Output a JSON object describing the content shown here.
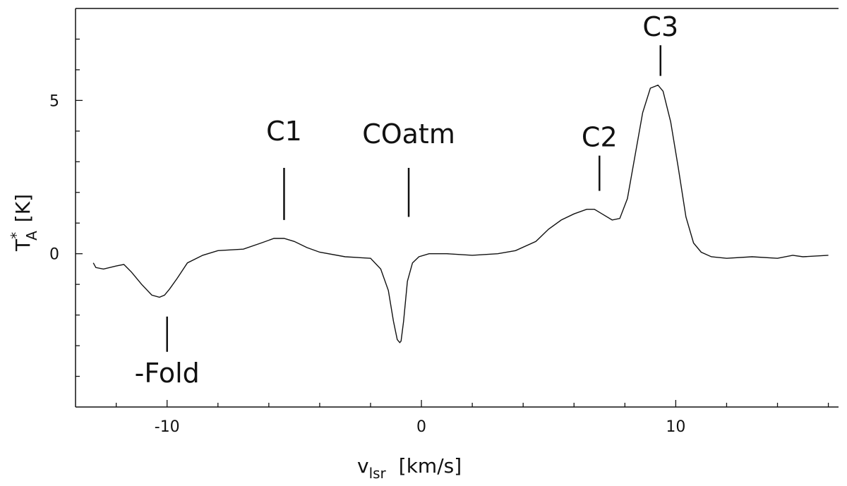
{
  "chart_data": {
    "type": "line",
    "xlabel_main": "v",
    "xlabel_sub": "lsr",
    "xlabel_unit": "[km/s]",
    "ylabel_main": "T",
    "ylabel_sup": "*",
    "ylabel_sub": "A",
    "ylabel_unit": "[K]",
    "xlim": [
      -13.6,
      16.4
    ],
    "ylim": [
      -5.0,
      8.0
    ],
    "x_ticks": [
      -10,
      0,
      10
    ],
    "y_ticks": [
      0,
      5
    ],
    "grid": false,
    "series": [
      {
        "x": [
          -12.9,
          -12.8,
          -12.5,
          -12.0,
          -11.7,
          -11.4,
          -11.0,
          -10.6,
          -10.3,
          -10.1,
          -9.9,
          -9.6,
          -9.2,
          -8.6,
          -8.0,
          -7.0,
          -6.3,
          -5.8,
          -5.4,
          -5.0,
          -4.5,
          -4.0,
          -3.0,
          -2.0,
          -1.6,
          -1.3,
          -1.1,
          -0.95,
          -0.85,
          -0.8,
          -0.7,
          -0.55,
          -0.35,
          -0.1,
          0.3,
          1.0,
          2.0,
          3.0,
          3.7,
          4.5,
          5.0,
          5.5,
          6.0,
          6.5,
          6.8,
          7.1,
          7.5,
          7.8,
          8.1,
          8.4,
          8.7,
          9.0,
          9.3,
          9.5,
          9.8,
          10.1,
          10.4,
          10.7,
          11.0,
          11.4,
          12.0,
          13.0,
          14.0,
          14.6,
          15.0,
          16.0
        ],
        "y": [
          -0.3,
          -0.45,
          -0.5,
          -0.4,
          -0.35,
          -0.6,
          -1.0,
          -1.35,
          -1.42,
          -1.35,
          -1.15,
          -0.8,
          -0.3,
          -0.05,
          0.1,
          0.15,
          0.35,
          0.5,
          0.5,
          0.4,
          0.2,
          0.05,
          -0.1,
          -0.15,
          -0.5,
          -1.2,
          -2.2,
          -2.8,
          -2.9,
          -2.85,
          -2.2,
          -0.9,
          -0.3,
          -0.1,
          0.0,
          0.0,
          -0.05,
          0.0,
          0.1,
          0.4,
          0.8,
          1.1,
          1.3,
          1.45,
          1.45,
          1.3,
          1.1,
          1.15,
          1.8,
          3.2,
          4.6,
          5.4,
          5.5,
          5.3,
          4.3,
          2.8,
          1.2,
          0.35,
          0.05,
          -0.1,
          -0.15,
          -0.1,
          -0.15,
          -0.05,
          -0.1,
          -0.05
        ]
      }
    ],
    "annotations": [
      {
        "text": "-Fold",
        "x": -10.0,
        "y_line": [
          -2.05,
          -3.2
        ],
        "y_text": -4.2
      },
      {
        "text": "C1",
        "x": -5.4,
        "y_line": [
          1.1,
          2.8
        ],
        "y_text": 3.7
      },
      {
        "text": "COatm",
        "x": -0.5,
        "y_line": [
          1.2,
          2.8
        ],
        "y_text": 3.6
      },
      {
        "text": "C2",
        "x": 7.0,
        "y_line": [
          2.05,
          3.2
        ],
        "y_text": 3.5
      },
      {
        "text": "C3",
        "x": 9.4,
        "y_line": [
          5.8,
          6.8
        ],
        "y_text": 7.1
      }
    ],
    "colors": {
      "line": "#111111",
      "axis": "#111111"
    }
  }
}
